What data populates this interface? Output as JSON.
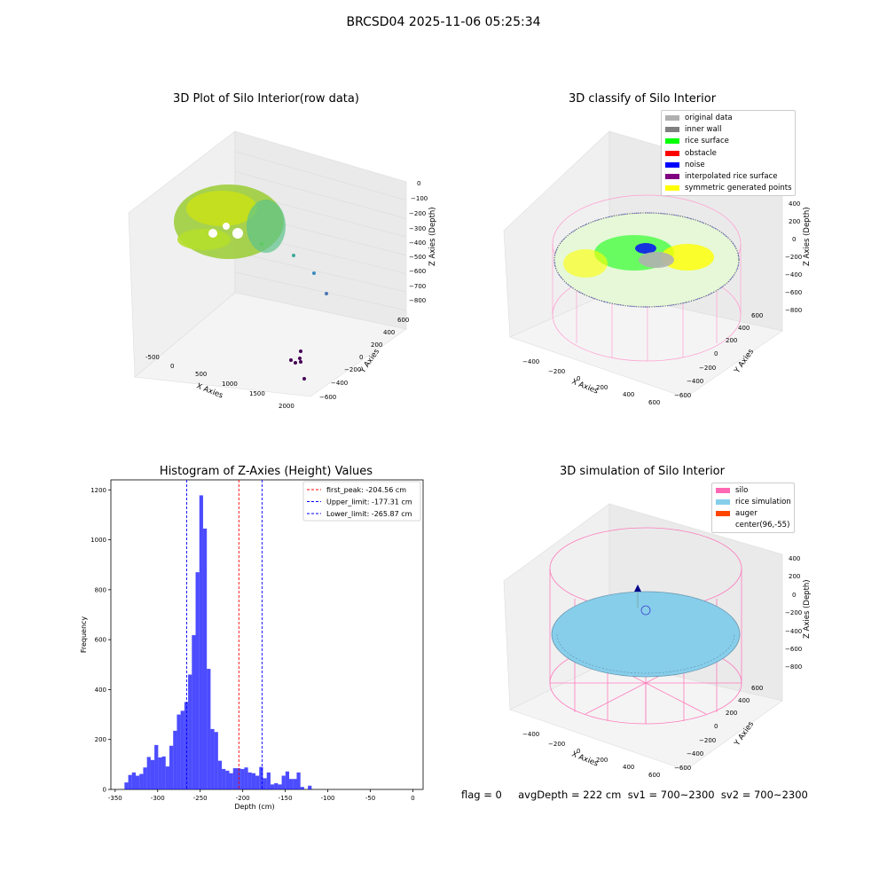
{
  "suptitle": "BRCSD04 2025-11-06 05:25:34",
  "panel1": {
    "title": "3D Plot of Silo Interior(row data)",
    "xlabel": "X Axies",
    "ylabel": "Y Axies",
    "zlabel": "Z Axies (Depth)",
    "xticks": [
      "-500",
      "0",
      "500",
      "1000",
      "1500",
      "2000"
    ],
    "yticks": [
      "600",
      "400",
      "200",
      "0",
      "−200",
      "−400",
      "−600"
    ],
    "zticks": [
      "0",
      "−100",
      "−200",
      "−300",
      "−400",
      "−500",
      "−600",
      "−700",
      "−800"
    ]
  },
  "panel2": {
    "title": "3D classify of Silo Interior",
    "xlabel": "X Axies",
    "ylabel": "Y Axies",
    "zlabel": "Z Axies (Depth)",
    "xticks": [
      "−400",
      "−200",
      "0",
      "200",
      "400",
      "600"
    ],
    "yticks": [
      "600",
      "400",
      "200",
      "0",
      "−200",
      "−400",
      "−600"
    ],
    "zticks": [
      "400",
      "200",
      "0",
      "−200",
      "−400",
      "−600",
      "−800"
    ],
    "legend": [
      {
        "label": "original data",
        "color": "#b0b0b0"
      },
      {
        "label": "inner wall",
        "color": "#808080"
      },
      {
        "label": "rice surface",
        "color": "#00ff00"
      },
      {
        "label": "obstacle",
        "color": "#ff0000"
      },
      {
        "label": "noise",
        "color": "#0000ff"
      },
      {
        "label": "interpolated rice surface",
        "color": "#800080"
      },
      {
        "label": "symmetric generated points",
        "color": "#ffff00"
      }
    ]
  },
  "panel4": {
    "title": "3D simulation of Silo Interior",
    "xlabel": "X Axies",
    "ylabel": "Y Axies",
    "zlabel": "Z Axies (Depth)",
    "xticks": [
      "−400",
      "−200",
      "0",
      "200",
      "400",
      "600"
    ],
    "yticks": [
      "600",
      "400",
      "200",
      "0",
      "−200",
      "−400",
      "−600"
    ],
    "zticks": [
      "400",
      "200",
      "0",
      "−200",
      "−400",
      "−600",
      "−800"
    ],
    "legend": [
      {
        "label": "silo",
        "color": "#ff69b4"
      },
      {
        "label": "rice simulation",
        "color": "#87ceeb"
      },
      {
        "label": "auger",
        "color": "#ff4500"
      },
      {
        "label": "center(96,-55)",
        "color": ""
      }
    ]
  },
  "footer": "flag = 0     avgDepth = 222 cm  sv1 = 700~2300  sv2 = 700~2300",
  "chart_data": {
    "type": "bar",
    "title": "Histogram of Z-Axies (Height) Values",
    "xlabel": "Depth (cm)",
    "ylabel": "Frequency",
    "xlim": [
      -355,
      12
    ],
    "ylim": [
      0,
      1240
    ],
    "xticks": [
      -350,
      -300,
      -250,
      -200,
      -150,
      -100,
      -50,
      0
    ],
    "yticks": [
      0,
      200,
      400,
      600,
      800,
      1000,
      1200
    ],
    "bin_width": 4.4,
    "bin_start": -339,
    "color": "#0000ff",
    "values": [
      28,
      58,
      68,
      55,
      62,
      88,
      130,
      118,
      178,
      128,
      132,
      92,
      175,
      235,
      300,
      315,
      350,
      460,
      618,
      870,
      1178,
      1045,
      483,
      242,
      230,
      115,
      82,
      75,
      65,
      85,
      85,
      82,
      88,
      68,
      65,
      55,
      90,
      45,
      68,
      20,
      25,
      20,
      55,
      72,
      42,
      42,
      68,
      10,
      0,
      15
    ],
    "lines": [
      {
        "label": "first_peak: -204.56 cm",
        "x": -204.56,
        "color": "#ff0000"
      },
      {
        "label": "Upper_limit: -177.31 cm",
        "x": -177.31,
        "color": "#0000ff"
      },
      {
        "label": "Lower_limit: -265.87 cm",
        "x": -265.87,
        "color": "#0000ff"
      }
    ],
    "legend_position": "top-right"
  }
}
